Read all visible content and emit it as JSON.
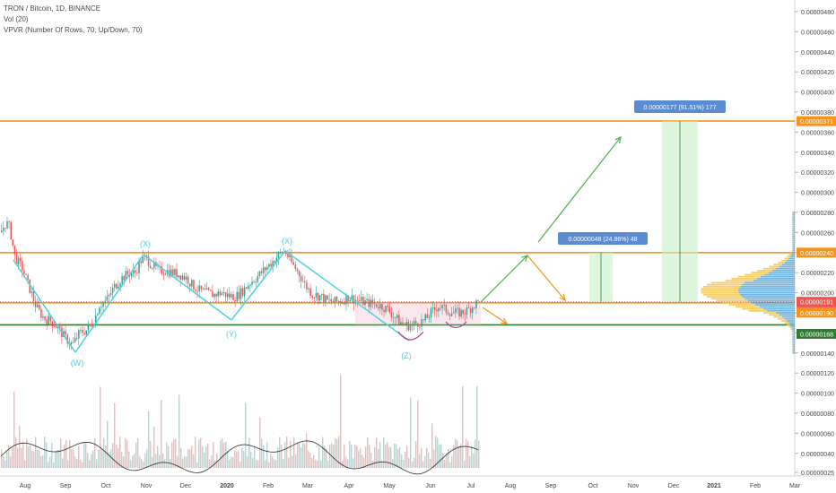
{
  "header": {
    "title": "TRON / Bitcoin, 1D, BINANCE",
    "indicator_volume": "Vol (20)",
    "indicator_vpvr": "VPVR (Number Of Rows, 70, Up/Down, 70)"
  },
  "chart_data": {
    "type": "candlestick",
    "x_labels": [
      "Aug",
      "Sep",
      "Oct",
      "Nov",
      "Dec",
      "2020",
      "Feb",
      "Mar",
      "Apr",
      "May",
      "Jun",
      "Jul",
      "Aug",
      "Sep",
      "Oct",
      "Nov",
      "Dec",
      "2021",
      "Feb",
      "Mar"
    ],
    "y_tick_labels": [
      "0.00000480",
      "0.00000460",
      "0.00000440",
      "0.00000420",
      "0.00000400",
      "0.00000380",
      "0.00000360",
      "0.00000340",
      "0.00000320",
      "0.00000300",
      "0.00000280",
      "0.00000260",
      "0.00000240",
      "0.00000220",
      "0.00000200",
      "0.00000180",
      "0.00000160",
      "0.00000140",
      "0.00000120",
      "0.00000100",
      "0.00000080",
      "0.00000060",
      "0.00000040",
      "0.00000025"
    ],
    "price_markers": [
      {
        "label": "0.00000371",
        "color": "#f7931a"
      },
      {
        "label": "0.00000240",
        "color": "#f7931a"
      },
      {
        "label": "0.00000191",
        "color": "#ef5350"
      },
      {
        "label": "16:06:02",
        "color": "#ef5350"
      },
      {
        "label": "0.00000190",
        "color": "#f7931a"
      },
      {
        "label": "0.00000168",
        "color": "#2e7d32"
      }
    ],
    "wave_labels": [
      "(W)",
      "(X)",
      "(Y)",
      "(X)",
      "(Z)"
    ],
    "measurements": [
      {
        "label": "0.00000048 (24.86%) 48"
      },
      {
        "label": "0.00000177 (91.51%) 177"
      }
    ],
    "horizontal_levels": [
      {
        "price": 3.71e-06,
        "color": "#f7931a"
      },
      {
        "price": 2.4e-06,
        "color": "#f7931a"
      },
      {
        "price": 1.9e-06,
        "color": "#f7931a"
      },
      {
        "price": 1.68e-06,
        "color": "#2e7d32"
      }
    ],
    "colors": {
      "up": "#26a69a",
      "down": "#ef5350",
      "wave": "#4dd0e1",
      "projection_up": "#4caf50",
      "projection_down": "#f7931a"
    }
  }
}
